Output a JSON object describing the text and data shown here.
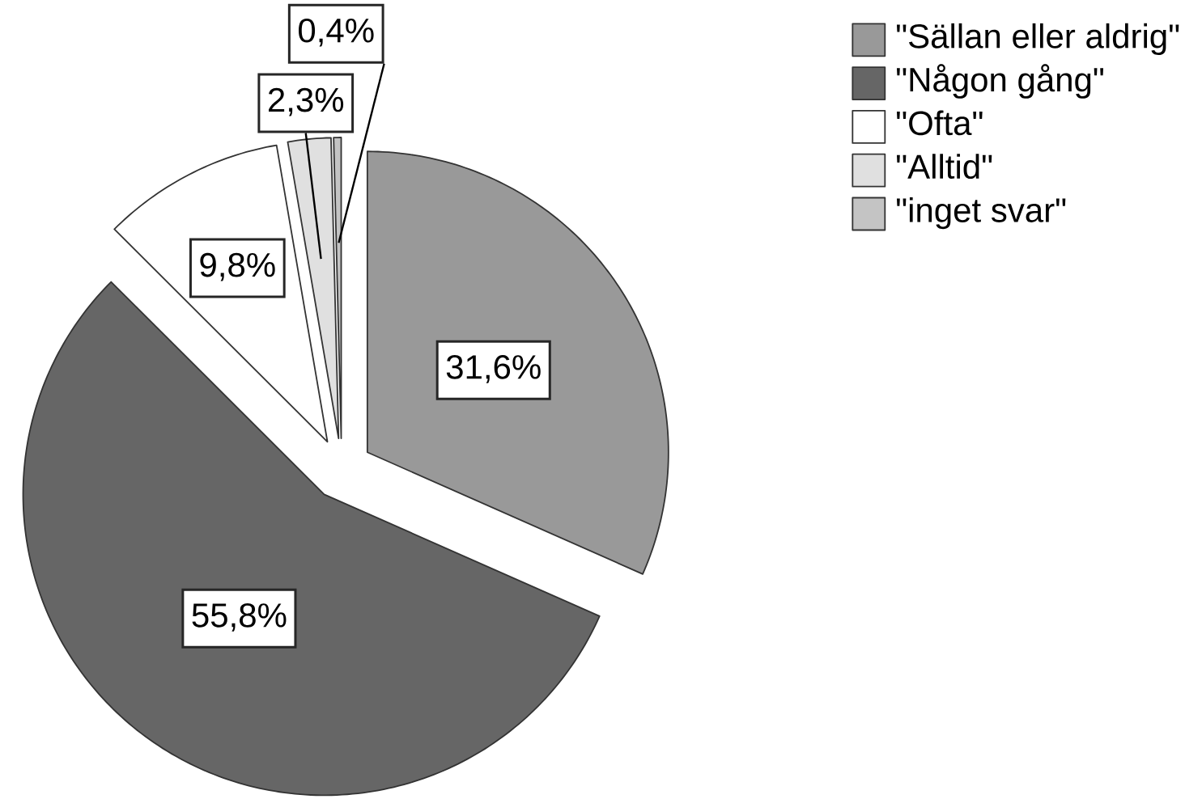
{
  "chart_data": {
    "type": "pie",
    "categories": [
      "\"Sällan eller aldrig\"",
      "\"Någon gång\"",
      "\"Ofta\"",
      "\"Alltid\"",
      "\"inget svar\""
    ],
    "values": [
      31.6,
      55.8,
      9.8,
      2.3,
      0.4
    ],
    "colors": [
      "#999999",
      "#666666",
      "#ffffff",
      "#e0e0e0",
      "#c4c4c4"
    ],
    "value_labels": [
      "31,6%",
      "55,8%",
      "9,8%",
      "2,3%",
      "0,4%"
    ],
    "legend": "top right"
  }
}
